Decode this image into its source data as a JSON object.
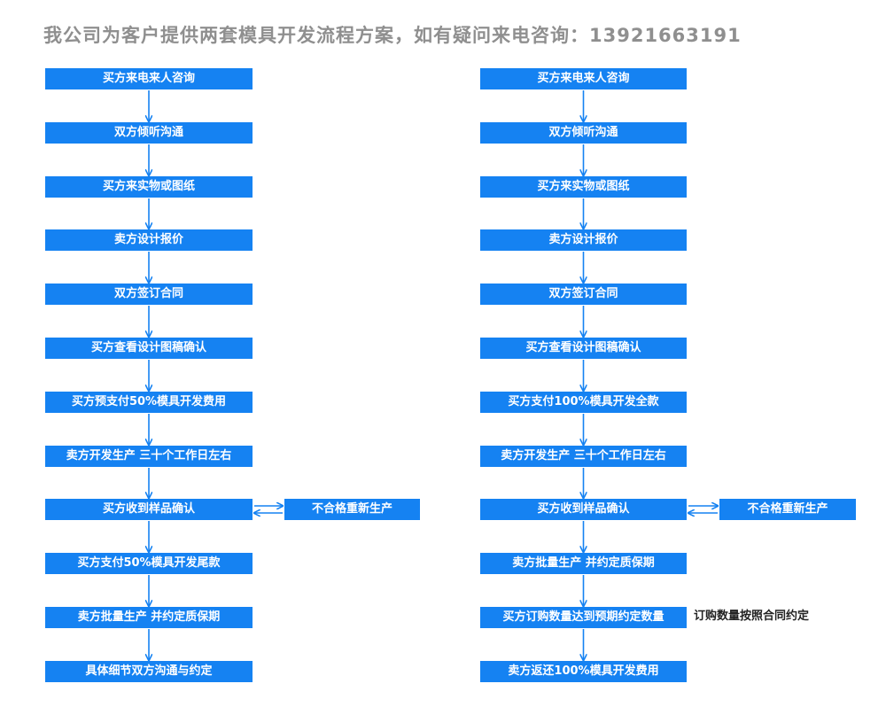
{
  "title": "我公司为客户提供两套模具开发流程方案，如有疑问来电咨询：13921663191",
  "left_flow": {
    "steps": [
      "买方来电来人咨询",
      "双方倾听沟通",
      "买方来实物或图纸",
      "卖方设计报价",
      "双方签订合同",
      "买方查看设计图稿确认",
      "买方预支付50%模具开发费用",
      "卖方开发生产 三十个工作日左右",
      "买方收到样品确认",
      "买方支付50%模具开发尾款",
      "卖方批量生产 并约定质保期",
      "具体细节双方沟通与约定"
    ],
    "side_box": "不合格重新生产"
  },
  "right_flow": {
    "steps": [
      "买方来电来人咨询",
      "双方倾听沟通",
      "买方来实物或图纸",
      "卖方设计报价",
      "双方签订合同",
      "买方查看设计图稿确认",
      "买方支付100%模具开发全款",
      "卖方开发生产 三十个工作日左右",
      "买方收到样品确认",
      "卖方批量生产 并约定质保期",
      "买方订购数量达到预期约定数量",
      "卖方返还100%模具开发费用"
    ],
    "side_box": "不合格重新生产",
    "note": "订购数量按照合同约定"
  },
  "colors": {
    "box_fill": "#1582f2",
    "box_text": "#ffffff",
    "arrow": "#1582f2",
    "title": "#8f8f8f"
  }
}
